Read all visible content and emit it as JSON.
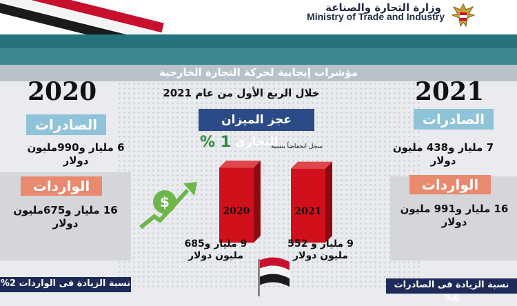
{
  "header": {
    "ministry_ar": "وزارة التجارة والصناعة",
    "ministry_en": "Ministry of Trade and Industry"
  },
  "banner": {
    "title": "مؤشرات إيجابية لحركة التجارة الخارجية"
  },
  "center": {
    "subtitle": "خلال الربع الأول من عام 2021",
    "deficit_title": "عجز الميزان التجارى",
    "decline_note": "سجل انخفاضاً بنسبة",
    "decline_pct": "% 1"
  },
  "left": {
    "year": "2020",
    "exports_label": "الصادرات",
    "exports_value_line1": "6 مليار و990مليون",
    "exports_value_line2": "دولار",
    "imports_label": "الواردات",
    "imports_value_line1": "16 مليار و675مليون",
    "imports_value_line2": "دولار",
    "footer": "نسبة الزيادة فى الواردات 2%"
  },
  "right": {
    "year": "2021",
    "exports_label": "الصادرات",
    "exports_value_line1": "7 مليار و438 مليون",
    "exports_value_line2": "دولار",
    "imports_label": "الواردات",
    "imports_value_line1": "16 مليار و991 مليون",
    "imports_value_line2": "دولار",
    "footer": "نسبة الزيادة فى الصادرات 6%"
  },
  "chart_data": {
    "type": "bar",
    "categories": [
      "2020",
      "2021"
    ],
    "values": [
      9.685,
      9.552
    ],
    "value_labels": [
      [
        "9 مليار و685",
        "مليون دولار"
      ],
      [
        "9 مليار و 552",
        "مليون دولار"
      ]
    ],
    "colors": {
      "bar": "#d0111b",
      "bar_side": "#8e0a10",
      "bar_top": "#e0464c"
    }
  }
}
